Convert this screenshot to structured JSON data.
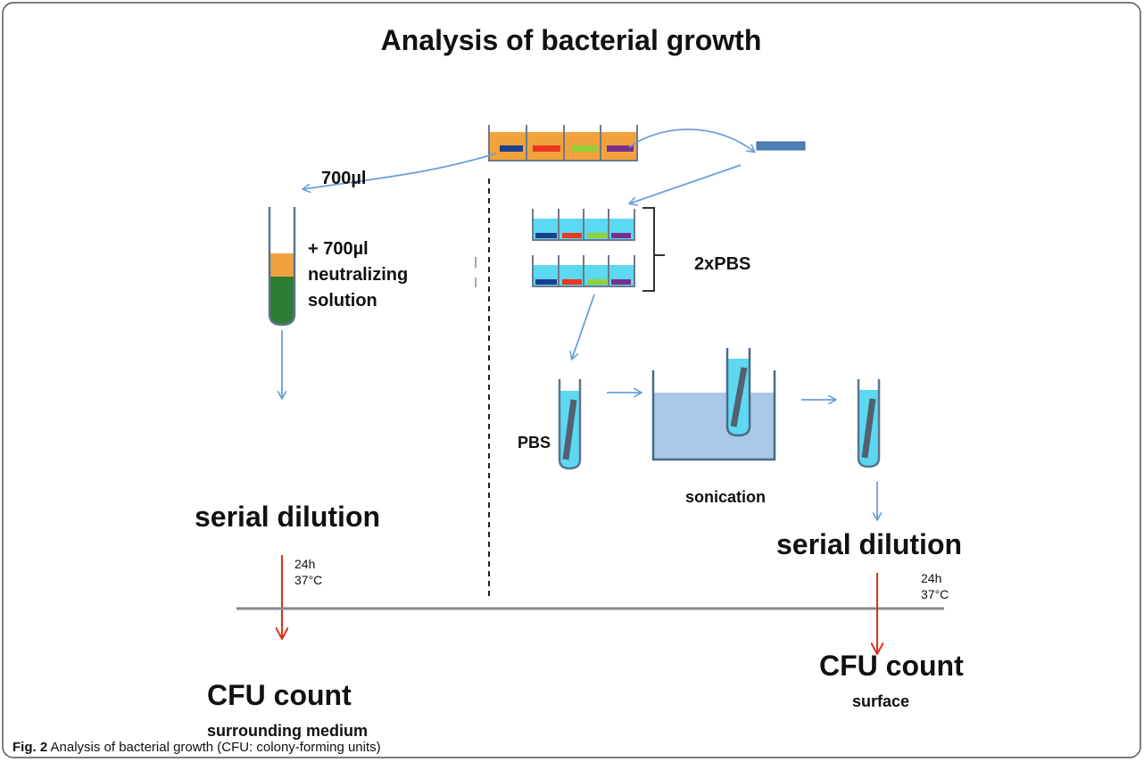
{
  "title": "Analysis of bacterial growth",
  "left": {
    "volume": "700µl",
    "addition": [
      "+ 700µl",
      "neutralizing",
      "solution"
    ],
    "step": "serial dilution",
    "incubation": [
      "24h",
      "37°C"
    ],
    "result": "CFU count",
    "result_note": "surrounding medium"
  },
  "right": {
    "wash": "2xPBS",
    "tube_label": "PBS",
    "bath": "sonication",
    "step": "serial dilution",
    "incubation": [
      "24h",
      "37°C"
    ],
    "result": "CFU count",
    "result_note": "surface"
  },
  "caption": {
    "label": "Fig. 2",
    "text": "Analysis of bacterial growth (CFU: colony-forming units)"
  }
}
